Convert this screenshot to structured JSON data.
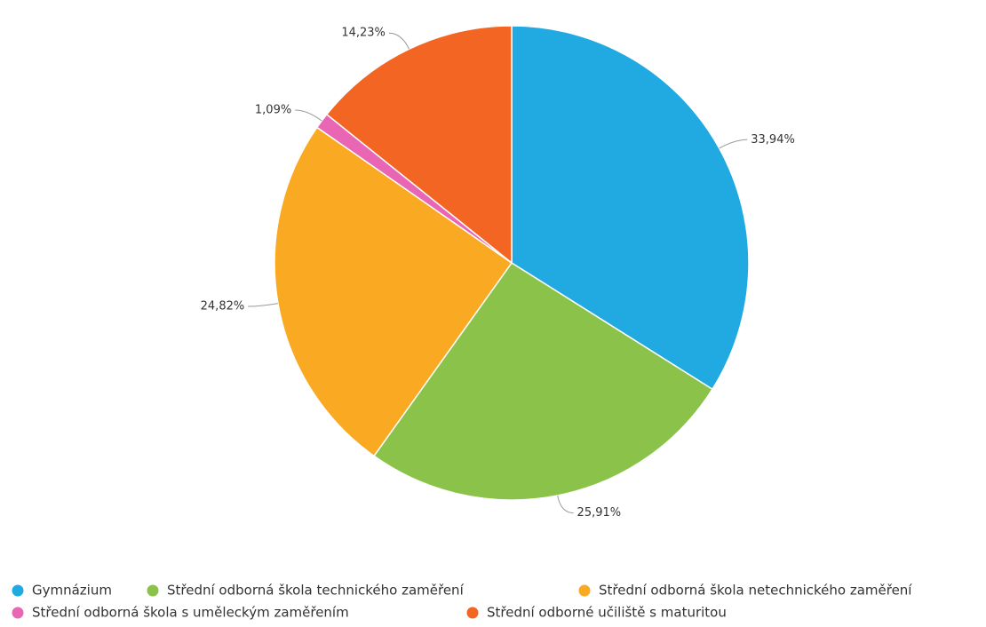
{
  "chart_data": {
    "type": "pie",
    "categories": [
      "Gymnázium",
      "Střední odborná škola technického zaměření",
      "Střední odborná škola netechnického zaměření",
      "Střední odborná škola s uměleckým zaměřením",
      "Střední odborné učiliště s maturitou"
    ],
    "values": [
      33.94,
      25.91,
      24.82,
      1.09,
      14.23
    ],
    "value_labels": [
      "33,94%",
      "25,91%",
      "24,82%",
      "1,09%",
      "14,23%"
    ],
    "colors": [
      "#21a9e1",
      "#8bc34a",
      "#faa923",
      "#e866b4",
      "#f26522"
    ],
    "legend": "bottom"
  }
}
